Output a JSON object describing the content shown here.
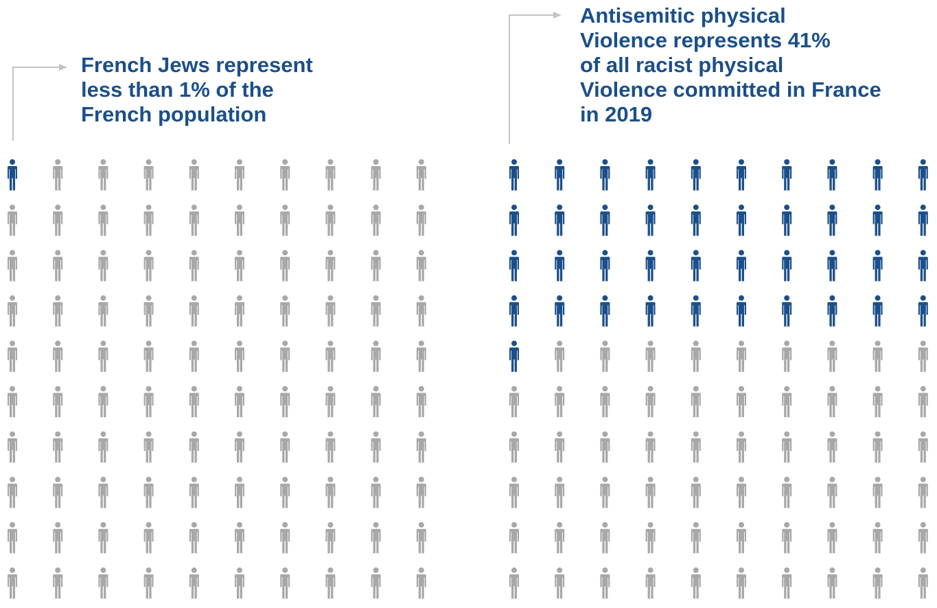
{
  "colors": {
    "highlight": "#1b4f8a",
    "base": "#a8a8a8",
    "text": "#1b4f8a",
    "arrow": "#c4c4c4"
  },
  "icon": "person-icon",
  "annotations": {
    "left": {
      "lines": [
        "French Jews represent",
        "less than 1% of the",
        "French population"
      ]
    },
    "right": {
      "lines": [
        "Antisemitic physical",
        "Violence represents 41%",
        "of all racist physical",
        "Violence committed in France",
        "in 2019"
      ]
    }
  },
  "chart_data": [
    {
      "type": "pictograph",
      "rows": 10,
      "columns": 10,
      "total": 100,
      "highlighted": 1,
      "fill_order": "row-major from top-left"
    },
    {
      "type": "pictograph",
      "rows": 10,
      "columns": 10,
      "total": 100,
      "highlighted": 41,
      "fill_order": "row-major from top-left"
    }
  ]
}
